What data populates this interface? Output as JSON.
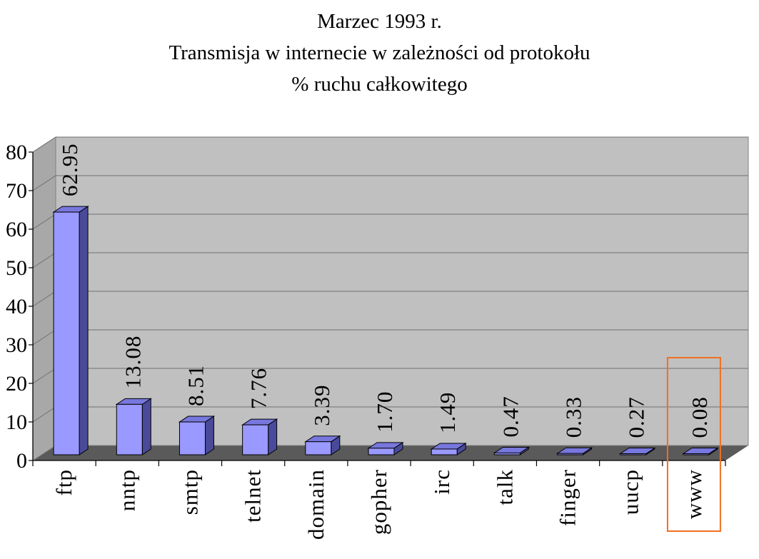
{
  "chart_data": {
    "type": "bar",
    "title": "Marzec 1993 r.",
    "subtitle": "Transmisja w internecie w zależności od protokołu",
    "subtitle2": "% ruchu całkowitego",
    "categories": [
      "ftp",
      "nntp",
      "smtp",
      "telnet",
      "domain",
      "gopher",
      "irc",
      "talk",
      "finger",
      "uucp",
      "www"
    ],
    "values": [
      62.95,
      13.08,
      8.51,
      7.76,
      3.39,
      1.7,
      1.49,
      0.47,
      0.33,
      0.27,
      0.08
    ],
    "value_labels": [
      "62.95",
      "13.08",
      "8.51",
      "7.76",
      "3.39",
      "1.70",
      "1.49",
      "0.47",
      "0.33",
      "0.27",
      "0.08"
    ],
    "ylim": [
      0,
      80
    ],
    "yticks": [
      0,
      10,
      20,
      30,
      40,
      50,
      60,
      70,
      80
    ],
    "grid": true,
    "style": "3d-column",
    "highlighted_category": "www",
    "colors": {
      "bar_front": "#9999ff",
      "bar_side": "#4a4a9a",
      "bar_top": "#7777dd",
      "back_wall": "#c0c0c0",
      "floor": "#5a5a5a",
      "highlight": "#f07020"
    }
  }
}
